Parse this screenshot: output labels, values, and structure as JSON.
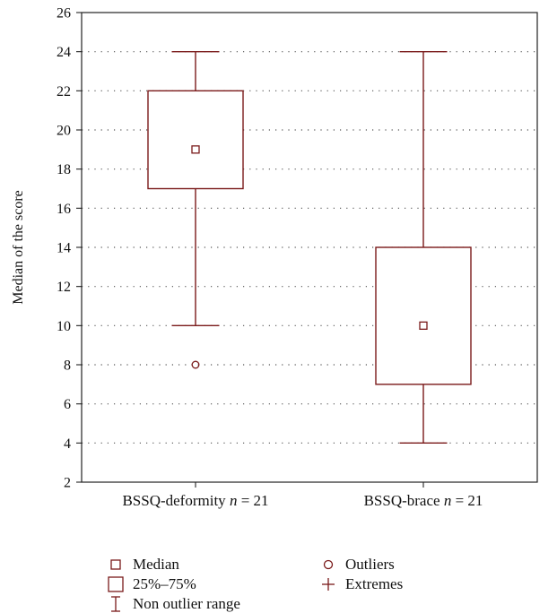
{
  "chart_data": {
    "type": "box",
    "ylabel": "Median of the score",
    "xlabel": "",
    "ylim": [
      2,
      26
    ],
    "yticks": [
      2,
      4,
      6,
      8,
      10,
      12,
      14,
      16,
      18,
      20,
      22,
      24,
      26
    ],
    "grid": true,
    "color": "#7a1a1a",
    "categories": [
      {
        "label": "BSSQ-deformity",
        "n_label": "n",
        "n_value": "= 21"
      },
      {
        "label": "BSSQ-brace",
        "n_label": "n",
        "n_value": "= 21"
      }
    ],
    "boxes": [
      {
        "median": 19,
        "q1": 17,
        "q3": 22,
        "whisker_low": 10,
        "whisker_high": 24,
        "outliers": [
          8
        ]
      },
      {
        "median": 10,
        "q1": 7,
        "q3": 14,
        "whisker_low": 4,
        "whisker_high": 24,
        "outliers": []
      }
    ]
  },
  "legend": {
    "median": "Median",
    "box": "25%–75%",
    "range": "Non outlier range",
    "outliers": "Outliers",
    "extremes": "Extremes"
  }
}
